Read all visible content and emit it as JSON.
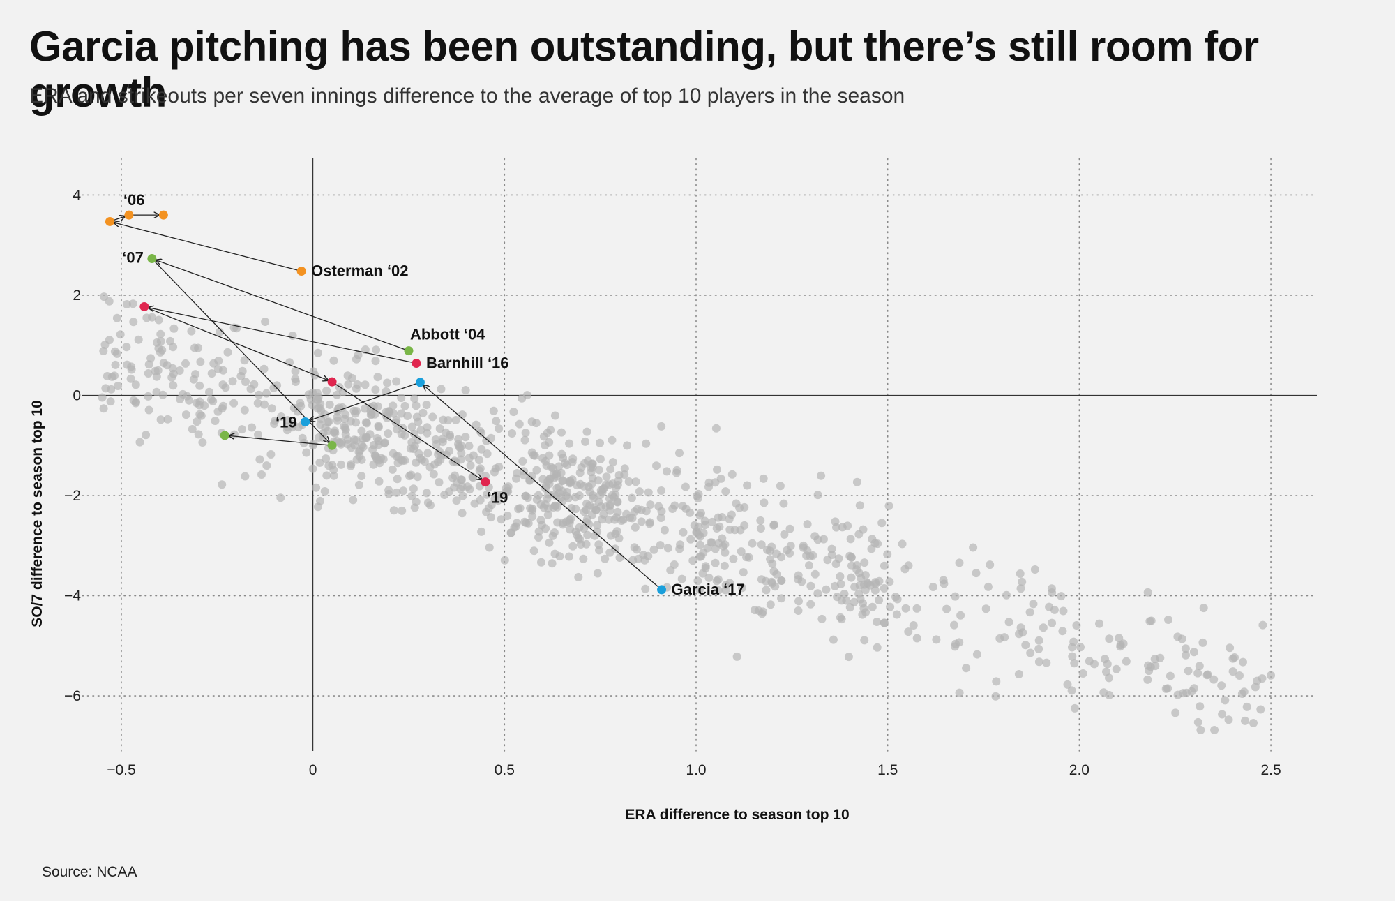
{
  "header": {
    "title": "Garcia pitching has been outstanding, but there’s still room for growth",
    "subtitle": "ERA and strikeouts per seven innings difference to the average of top 10 players in the season"
  },
  "footer": {
    "source": "Source: NCAA"
  },
  "chart_data": {
    "type": "scatter",
    "xlabel": "ERA difference to season top 10",
    "ylabel": "SO/7 difference to season top 10",
    "xlim": [
      -0.62,
      2.62
    ],
    "ylim": [
      -7.1,
      4.8
    ],
    "xticks": [
      -0.5,
      0,
      0.5,
      1.0,
      1.5,
      2.0,
      2.5
    ],
    "xtick_labels": [
      "−0.5",
      "0",
      "0.5",
      "1.0",
      "1.5",
      "2.0",
      "2.5"
    ],
    "yticks": [
      4,
      2,
      0,
      -2,
      -4,
      -6
    ],
    "ytick_labels": [
      "4",
      "2",
      "0",
      "−2",
      "−4",
      "−6"
    ],
    "grid": "dotted",
    "background_points": {
      "color": "#b4b4b4",
      "count": 1100,
      "seed": 7
    },
    "series": [
      {
        "name": "Osterman",
        "color": "#f39221",
        "points": [
          {
            "x": -0.03,
            "y": 2.48,
            "label": "Osterman ‘02"
          },
          {
            "x": -0.53,
            "y": 3.47,
            "label": ""
          },
          {
            "x": -0.48,
            "y": 3.6,
            "label": "‘06"
          },
          {
            "x": -0.39,
            "y": 3.6,
            "label": ""
          }
        ]
      },
      {
        "name": "Abbott",
        "color": "#7ab648",
        "points": [
          {
            "x": 0.25,
            "y": 0.89,
            "label": "Abbott ‘04"
          },
          {
            "x": -0.42,
            "y": 2.73,
            "label": "‘07"
          },
          {
            "x": 0.05,
            "y": -1.0,
            "label": ""
          },
          {
            "x": -0.23,
            "y": -0.8,
            "label": ""
          }
        ]
      },
      {
        "name": "Barnhill",
        "color": "#e0264f",
        "points": [
          {
            "x": 0.27,
            "y": 0.64,
            "label": "Barnhill ‘16"
          },
          {
            "x": -0.44,
            "y": 1.77,
            "label": ""
          },
          {
            "x": 0.05,
            "y": 0.27,
            "label": ""
          },
          {
            "x": 0.45,
            "y": -1.73,
            "label": "‘19"
          }
        ]
      },
      {
        "name": "Garcia",
        "color": "#1a9fdb",
        "points": [
          {
            "x": 0.91,
            "y": -3.88,
            "label": "Garcia ‘17"
          },
          {
            "x": 0.28,
            "y": 0.26,
            "label": ""
          },
          {
            "x": -0.02,
            "y": -0.53,
            "label": "‘19"
          }
        ]
      }
    ]
  }
}
